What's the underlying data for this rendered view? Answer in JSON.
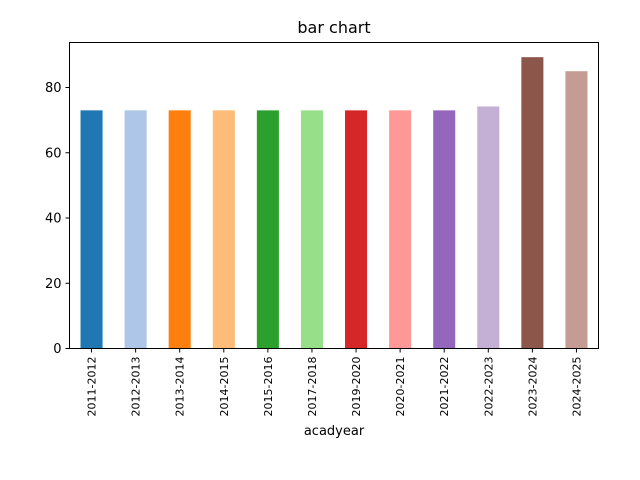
{
  "chart_data": {
    "type": "bar",
    "title": "bar chart",
    "xlabel": "acadyear",
    "ylabel": "",
    "categories": [
      "2011-2012",
      "2012-2013",
      "2013-2014",
      "2014-2015",
      "2015-2016",
      "2017-2018",
      "2019-2020",
      "2020-2021",
      "2021-2022",
      "2022-2023",
      "2023-2024",
      "2024-2025"
    ],
    "values": [
      73,
      73,
      73,
      73,
      73,
      73,
      73,
      73,
      73,
      74.2,
      89.3,
      85
    ],
    "colors": [
      "#1f77b4",
      "#aec7e8",
      "#ff7f0e",
      "#ffbb78",
      "#2ca02c",
      "#98df8a",
      "#d62728",
      "#ff9896",
      "#9467bd",
      "#c5b0d5",
      "#8c564b",
      "#c49c94"
    ],
    "ylim": [
      0,
      93.8
    ],
    "yticks": [
      0,
      20,
      40,
      60,
      80
    ],
    "grid": false,
    "legend": "none"
  }
}
